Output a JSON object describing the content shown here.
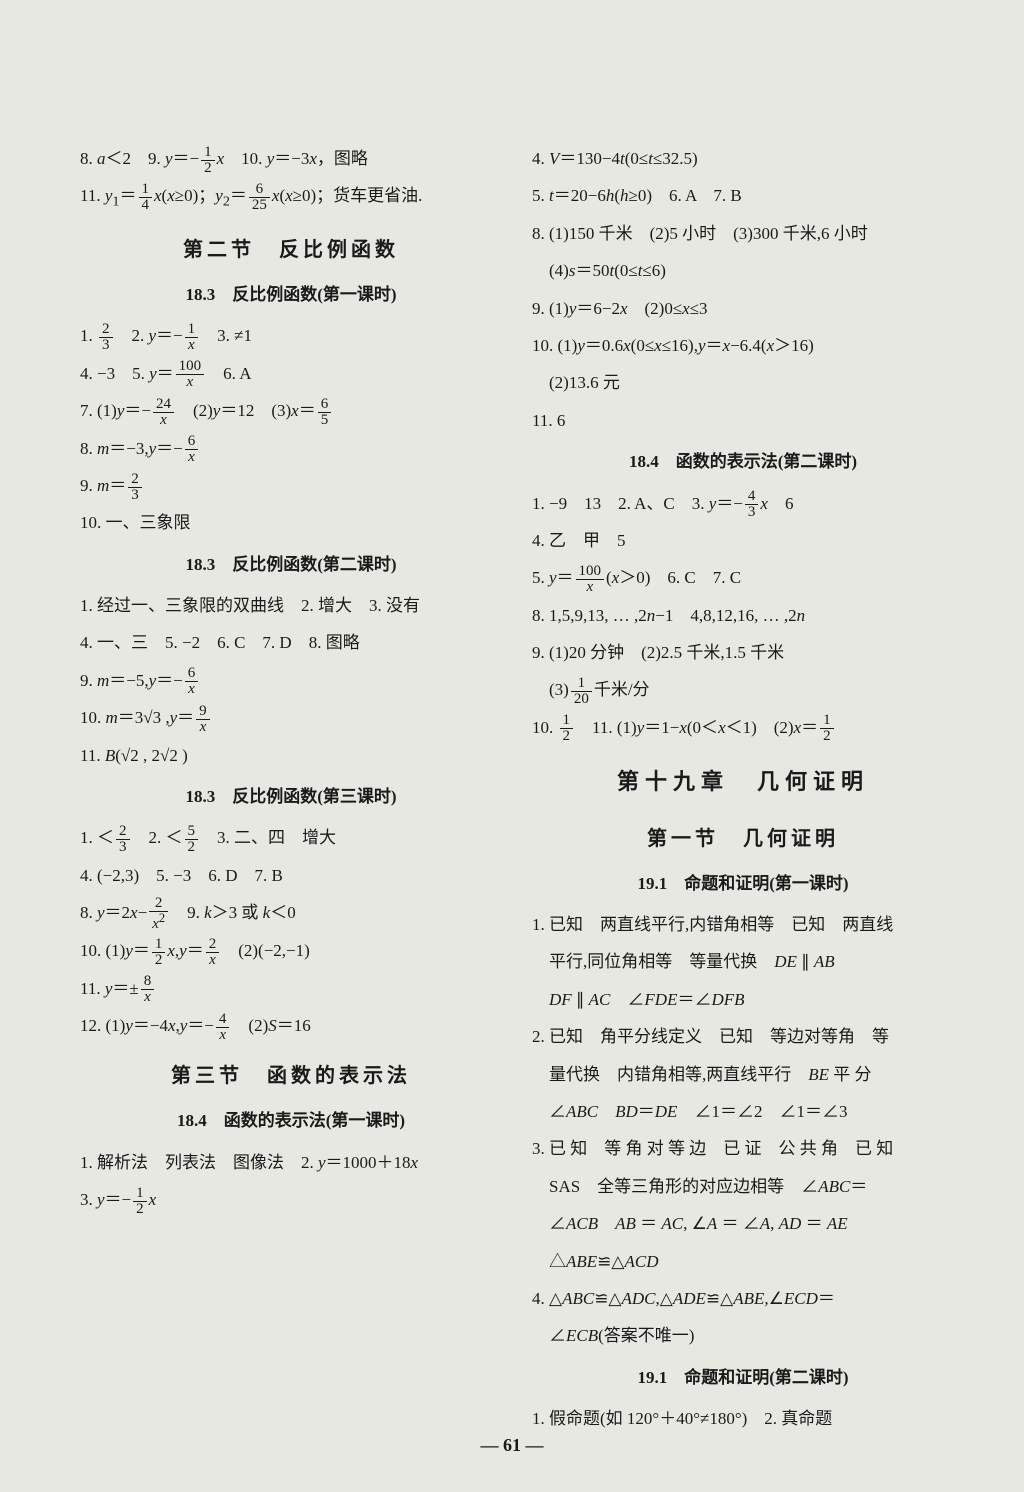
{
  "left": {
    "l1a": "8. ",
    "l1b": "＜2　9. ",
    "l1c": "＝−",
    "l1d": "　10. ",
    "l1e": "＝−3",
    "l1f": "，图略",
    "l2a": "11. ",
    "l2b": "＝",
    "l2c": "(",
    "l2d": "≥0)；",
    "l2e": "＝",
    "l2f": "(",
    "l2g": "≥0)；货车更省油.",
    "sec2": "第二节　反比例函数",
    "sub183a": "18.3　反比例函数(第一课时)",
    "l3a": "1. ",
    "l3b": "　2. ",
    "l3c": "＝−",
    "l3d": "　3. ≠1",
    "l4a": "4. −3　5. ",
    "l4b": "＝",
    "l4c": "　6. A",
    "l5a": "7. (1)",
    "l5b": "＝−",
    "l5c": "　(2)",
    "l5d": "＝12　(3)",
    "l5e": "＝",
    "l6a": "8. ",
    "l6b": "＝−3,",
    "l6c": "＝−",
    "l7a": "9. ",
    "l7b": "＝",
    "l8": "10. 一、三象限",
    "sub183b": "18.3　反比例函数(第二课时)",
    "l9": "1. 经过一、三象限的双曲线　2. 增大　3. 没有",
    "l10": "4. 一、三　5. −2　6. C　7. D　8. 图略",
    "l11a": "9. ",
    "l11b": "＝−5,",
    "l11c": "＝−",
    "l12a": "10. ",
    "l12b": "＝3√3 ,",
    "l12c": "＝",
    "l13a": "11. ",
    "l13b": "(√2 , 2√2 )",
    "sub183c": "18.3　反比例函数(第三课时)",
    "l14a": "1. ＜",
    "l14b": "　2. ＜",
    "l14c": "　3. 二、四　增大",
    "l15": "4. (−2,3)　5. −3　6. D　7. B",
    "l16a": "8. ",
    "l16b": "＝2",
    "l16c": "−",
    "l16d": "　9. ",
    "l16e": "＞3 或 ",
    "l16f": "＜0",
    "l17a": "10. (1)",
    "l17b": "＝",
    "l17c": ",",
    "l17d": "＝",
    "l17e": "　(2)(−2,−1)",
    "l18a": "11. ",
    "l18b": "＝±",
    "l19a": "12. (1)",
    "l19b": "＝−4",
    "l19c": ",",
    "l19d": "＝−",
    "l19e": "　(2)",
    "l19f": "＝16",
    "sec3": "第三节　函数的表示法",
    "sub184a": "18.4　函数的表示法(第一课时)",
    "l20": "1. 解析法　列表法　图像法　2. ",
    "l20b": "＝1000＋18",
    "l21a": "3. ",
    "l21b": "＝−"
  },
  "right": {
    "r1a": "4. ",
    "r1b": "＝130−4",
    "r1c": "(0≤",
    "r1d": "≤32.5)",
    "r2a": "5. ",
    "r2b": "＝20−6",
    "r2c": "(",
    "r2d": "≥0)　6. A　7. B",
    "r3": "8. (1)150 千米　(2)5 小时　(3)300 千米,6 小时",
    "r4a": "　(4)",
    "r4b": "＝50",
    "r4c": "(0≤",
    "r4d": "≤6)",
    "r5a": "9. (1)",
    "r5b": "＝6−2",
    "r5c": "　(2)0≤",
    "r5d": "≤3",
    "r6a": "10. (1)",
    "r6b": "＝0.6",
    "r6c": "(0≤",
    "r6d": "≤16),",
    "r6e": "＝",
    "r6f": "−6.4(",
    "r6g": "＞16)",
    "r7": "　(2)13.6 元",
    "r8": "11. 6",
    "sub184b": "18.4　函数的表示法(第二课时)",
    "r9a": "1. −9　13　2. A、C　3. ",
    "r9b": "＝−",
    "r9c": "　6",
    "r10": "4. 乙　甲　5",
    "r11a": "5. ",
    "r11b": "＝",
    "r11c": "(",
    "r11d": "＞0)　6. C　7. C",
    "r12": "8. 1,5,9,13, … ,2",
    "r12b": "−1　4,8,12,16, … ,2",
    "r13": "9. (1)20 分钟　(2)2.5 千米,1.5 千米",
    "r14a": "　(3)",
    "r14b": "千米/分",
    "r15a": "10. ",
    "r15b": "　11. (1)",
    "r15c": "＝1−",
    "r15d": "(0＜",
    "r15e": "＜1)　(2)",
    "r15f": "＝",
    "chap19": "第十九章　几何证明",
    "sec19_1": "第一节　几何证明",
    "sub191a": "19.1　命题和证明(第一课时)",
    "r16": "1. 已知　两直线平行,内错角相等　已知　两直线",
    "r17a": "　平行,同位角相等　等量代换　",
    "r17b": " ∥ ",
    "r18a": "　",
    "r18b": " ∥ ",
    "r18c": "　∠",
    "r18d": "＝∠",
    "r19": "2. 已知　角平分线定义　已知　等边对等角　等",
    "r20a": "　量代换　内错角相等,两直线平行　",
    "r20b": " 平 分",
    "r21a": "　∠",
    "r21b": "　",
    "r21c": "＝",
    "r21d": "　∠1＝∠2　∠1＝∠3",
    "r22": "3. 已 知　等 角 对 等 边　已 证　公 共 角　已 知",
    "r23a": "　SAS　全等三角形的对应边相等　∠",
    "r23b": "＝",
    "r24a": "　∠",
    "r24b": "　",
    "r24c": " ＝ ",
    "r24d": ", ∠",
    "r24e": " ＝ ∠",
    "r24f": ", ",
    "r24g": " ＝ ",
    "r25a": "　△",
    "r25b": "≌△",
    "r26a": "4. △",
    "r26b": "≌△",
    "r26c": ",△",
    "r26d": "≌△",
    "r26e": ",∠",
    "r26f": "＝",
    "r27a": "　∠",
    "r27b": "(答案不唯一)",
    "sub191b": "19.1　命题和证明(第二课时)",
    "r28": "1. 假命题(如 120°＋40°≠180°)　2. 真命题"
  },
  "pagenum": "— 61 —"
}
